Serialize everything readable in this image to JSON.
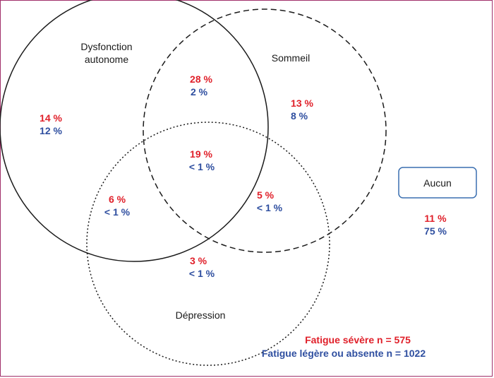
{
  "sets": {
    "autonomic_line1": "Dysfonction",
    "autonomic_line2": "autonome",
    "sleep": "Sommeil",
    "depression": "Dépression",
    "none": "Aucun"
  },
  "regions": {
    "autonomic_only": {
      "severe": "14 %",
      "mild": "12 %"
    },
    "autonomic_sleep": {
      "severe": "28 %",
      "mild": "2 %"
    },
    "sleep_only": {
      "severe": "13 %",
      "mild": "8 %"
    },
    "all_three": {
      "severe": "19 %",
      "mild": "< 1 %"
    },
    "autonomic_depression": {
      "severe": "6 %",
      "mild": "< 1 %"
    },
    "sleep_depression": {
      "severe": "5 %",
      "mild": "< 1 %"
    },
    "depression_only": {
      "severe": "3 %",
      "mild": "< 1 %"
    },
    "none": {
      "severe": "11 %",
      "mild": "75 %"
    }
  },
  "legend": {
    "severe": "Fatigue sévère n = 575",
    "mild": "Fatigue légère ou absente n = 1022"
  },
  "colors": {
    "severe": "#e0202a",
    "mild": "#2f4fa0",
    "frame": "#a0306a",
    "none_box": "#3a6fb0"
  }
}
